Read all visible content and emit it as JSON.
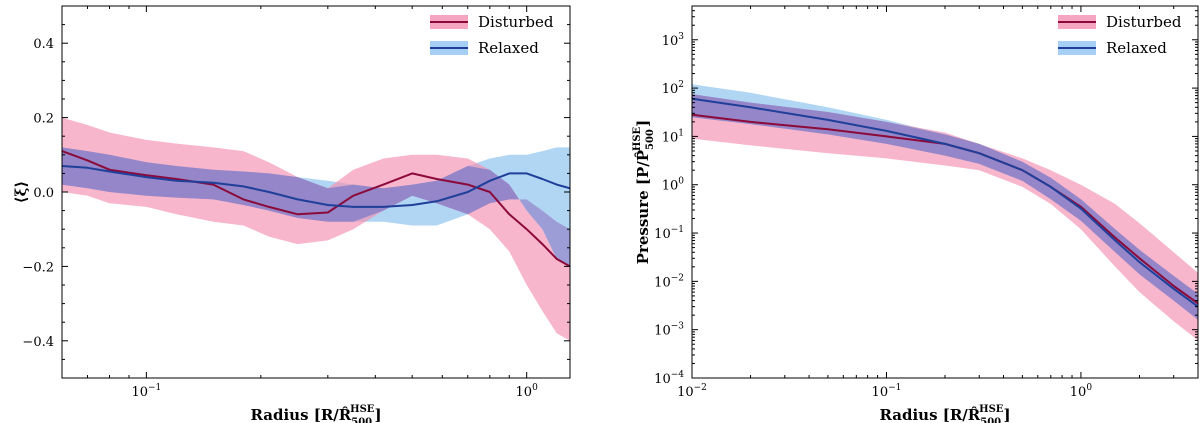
{
  "colors": {
    "disturbed_line": "#8b0a3a",
    "disturbed_band": "#f48fb1",
    "relaxed_line": "#1f3f9a",
    "relaxed_band": "#90c4f0",
    "overlap_band": "#7b7bc8"
  },
  "chart_data": [
    {
      "type": "line",
      "xscale": "log",
      "xlim": [
        0.06,
        1.3
      ],
      "ylim": [
        -0.5,
        0.5
      ],
      "xlabel": "Radius [R/R̂_500^HSE]",
      "xlabel_main": "Radius [R/",
      "xlabel_hat": "R̂",
      "xlabel_sub": "500",
      "xlabel_sup": "HSE",
      "xlabel_end": "]",
      "ylabel": "⟨ξ⟩",
      "xticks": [
        {
          "v": 0.1,
          "base": "10",
          "exp": "−1"
        },
        {
          "v": 1,
          "base": "10",
          "exp": "0"
        }
      ],
      "yticks": [
        {
          "v": 0.4,
          "label": "0.4"
        },
        {
          "v": 0.2,
          "label": "0.2"
        },
        {
          "v": 0.0,
          "label": "0.0"
        },
        {
          "v": -0.2,
          "label": "−0.2"
        },
        {
          "v": -0.4,
          "label": "−0.4"
        }
      ],
      "legend": {
        "position": "top-right",
        "entries": [
          "Disturbed",
          "Relaxed"
        ]
      },
      "series": [
        {
          "name": "Disturbed",
          "x": [
            0.06,
            0.07,
            0.08,
            0.1,
            0.12,
            0.15,
            0.18,
            0.21,
            0.25,
            0.3,
            0.35,
            0.42,
            0.5,
            0.58,
            0.7,
            0.8,
            0.9,
            1.0,
            1.1,
            1.2,
            1.3
          ],
          "y": [
            0.11,
            0.085,
            0.06,
            0.045,
            0.035,
            0.02,
            -0.02,
            -0.04,
            -0.06,
            -0.055,
            -0.01,
            0.02,
            0.05,
            0.035,
            0.02,
            0.0,
            -0.06,
            -0.1,
            -0.14,
            -0.18,
            -0.2
          ],
          "upper": [
            0.2,
            0.18,
            0.16,
            0.14,
            0.13,
            0.12,
            0.11,
            0.08,
            0.04,
            0.01,
            0.06,
            0.09,
            0.1,
            0.1,
            0.09,
            0.06,
            0.02,
            -0.05,
            -0.1,
            -0.18,
            -0.2
          ],
          "lower": [
            0.0,
            -0.01,
            -0.03,
            -0.04,
            -0.06,
            -0.08,
            -0.09,
            -0.12,
            -0.14,
            -0.13,
            -0.1,
            -0.05,
            -0.01,
            -0.03,
            -0.06,
            -0.1,
            -0.16,
            -0.25,
            -0.32,
            -0.38,
            -0.4
          ]
        },
        {
          "name": "Relaxed",
          "x": [
            0.06,
            0.07,
            0.08,
            0.1,
            0.12,
            0.15,
            0.18,
            0.21,
            0.25,
            0.3,
            0.35,
            0.42,
            0.5,
            0.58,
            0.7,
            0.8,
            0.9,
            1.0,
            1.1,
            1.2,
            1.3
          ],
          "y": [
            0.07,
            0.065,
            0.055,
            0.04,
            0.03,
            0.025,
            0.015,
            0.0,
            -0.02,
            -0.035,
            -0.04,
            -0.04,
            -0.035,
            -0.025,
            0.0,
            0.03,
            0.05,
            0.05,
            0.035,
            0.02,
            0.01
          ],
          "upper": [
            0.12,
            0.11,
            0.1,
            0.08,
            0.07,
            0.06,
            0.055,
            0.05,
            0.04,
            0.03,
            0.02,
            0.01,
            0.02,
            0.03,
            0.07,
            0.09,
            0.1,
            0.1,
            0.11,
            0.12,
            0.12
          ],
          "lower": [
            0.02,
            0.01,
            0.0,
            -0.01,
            -0.015,
            -0.02,
            -0.035,
            -0.05,
            -0.07,
            -0.08,
            -0.08,
            -0.08,
            -0.09,
            -0.09,
            -0.06,
            -0.03,
            -0.02,
            -0.02,
            -0.05,
            -0.08,
            -0.1
          ]
        }
      ]
    },
    {
      "type": "line",
      "xscale": "log",
      "yscale": "log",
      "xlim": [
        0.01,
        4.0
      ],
      "ylim": [
        0.0001,
        5000
      ],
      "xlabel": "Radius [R/R̂_500^HSE]",
      "xlabel_main": "Radius [R/",
      "xlabel_hat": "R̂",
      "xlabel_sub": "500",
      "xlabel_sup": "HSE",
      "xlabel_end": "]",
      "ylabel": "Pressure [P/P̂_500^HSE]",
      "ylabel_main": "Pressure [P/",
      "ylabel_hat": "P̂",
      "ylabel_sub": "500",
      "ylabel_sup": "HSE",
      "ylabel_end": "]",
      "xticks": [
        {
          "v": 0.01,
          "base": "10",
          "exp": "−2"
        },
        {
          "v": 0.1,
          "base": "10",
          "exp": "−1"
        },
        {
          "v": 1,
          "base": "10",
          "exp": "0"
        }
      ],
      "yticks": [
        {
          "v": 1000,
          "base": "10",
          "exp": "3"
        },
        {
          "v": 100,
          "base": "10",
          "exp": "2"
        },
        {
          "v": 10,
          "base": "10",
          "exp": "1"
        },
        {
          "v": 1,
          "base": "10",
          "exp": "0"
        },
        {
          "v": 0.1,
          "base": "10",
          "exp": "−1"
        },
        {
          "v": 0.01,
          "base": "10",
          "exp": "−2"
        },
        {
          "v": 0.001,
          "base": "10",
          "exp": "−3"
        },
        {
          "v": 0.0001,
          "base": "10",
          "exp": "−4"
        }
      ],
      "legend": {
        "position": "top-right",
        "entries": [
          "Disturbed",
          "Relaxed"
        ]
      },
      "series": [
        {
          "name": "Disturbed",
          "x": [
            0.01,
            0.02,
            0.05,
            0.1,
            0.2,
            0.3,
            0.5,
            0.7,
            1.0,
            1.5,
            2.0,
            3.0,
            4.0
          ],
          "y": [
            28,
            20,
            14,
            10,
            7,
            4.5,
            2.0,
            0.9,
            0.35,
            0.08,
            0.03,
            0.008,
            0.0035
          ],
          "upper": [
            75,
            50,
            32,
            20,
            12,
            7,
            3.5,
            2.0,
            1.0,
            0.4,
            0.16,
            0.04,
            0.015
          ],
          "lower": [
            9,
            6.5,
            4.5,
            3.5,
            2.5,
            2.0,
            0.9,
            0.4,
            0.12,
            0.02,
            0.006,
            0.0015,
            0.0006
          ]
        },
        {
          "name": "Relaxed",
          "x": [
            0.01,
            0.02,
            0.05,
            0.1,
            0.2,
            0.3,
            0.5,
            0.7,
            1.0,
            1.5,
            2.0,
            3.0,
            4.0
          ],
          "y": [
            60,
            40,
            22,
            13,
            7,
            4.5,
            2.0,
            0.9,
            0.32,
            0.07,
            0.025,
            0.007,
            0.003
          ],
          "upper": [
            120,
            80,
            40,
            22,
            11,
            7,
            3.0,
            1.4,
            0.5,
            0.12,
            0.045,
            0.013,
            0.0055
          ],
          "lower": [
            25,
            18,
            11,
            7,
            4,
            2.7,
            1.2,
            0.5,
            0.18,
            0.04,
            0.014,
            0.004,
            0.0016
          ]
        }
      ]
    }
  ]
}
